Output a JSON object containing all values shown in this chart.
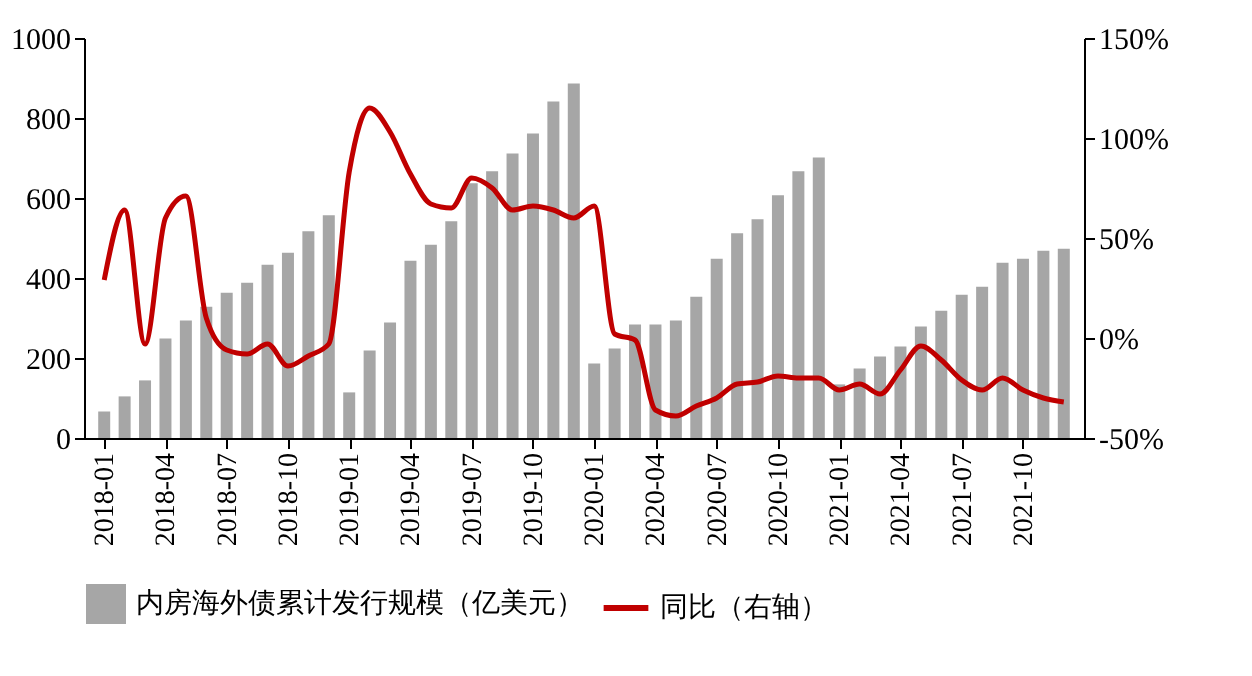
{
  "chart_data": {
    "type": "bar",
    "categories": [
      "2018-01",
      null,
      null,
      "2018-04",
      null,
      null,
      "2018-07",
      null,
      null,
      "2018-10",
      null,
      null,
      "2019-01",
      null,
      null,
      "2019-04",
      null,
      null,
      "2019-07",
      null,
      null,
      "2019-10",
      null,
      null,
      "2020-01",
      null,
      null,
      "2020-04",
      null,
      null,
      "2020-07",
      null,
      null,
      "2020-10",
      null,
      null,
      "2021-01",
      null,
      null,
      "2021-04",
      null,
      null,
      "2021-07",
      null,
      null,
      "2021-10",
      null,
      null
    ],
    "series": [
      {
        "name": "内房海外债累计发行规模（亿美元）",
        "color": "#a6a6a6",
        "values": [
          66,
          104,
          144,
          249,
          294,
          328,
          363,
          388,
          433,
          463,
          517,
          557,
          114,
          219,
          289,
          443,
          483,
          542,
          637,
          667,
          711,
          761,
          841,
          886,
          186,
          224,
          284,
          284,
          294,
          353,
          448,
          512,
          547,
          607,
          667,
          701,
          134,
          174,
          204,
          229,
          279,
          318,
          358,
          378,
          438,
          448,
          468,
          473
        ]
      },
      {
        "name": "同比（右轴）",
        "color": "#c00000",
        "type": "line",
        "axis": "y2",
        "values": [
          29,
          64,
          -3,
          60,
          71,
          10,
          -6,
          -8,
          -3,
          -14,
          -9,
          -3,
          83,
          115,
          103,
          82,
          67,
          65,
          80,
          75,
          64,
          66,
          64,
          60,
          66,
          2,
          -1,
          -36,
          -39,
          -34,
          -30,
          -23,
          -22,
          -19,
          -20,
          -20,
          -26,
          -23,
          -28,
          -16,
          -4,
          -11,
          -21,
          -26,
          -20,
          -26,
          -30,
          -32
        ]
      }
    ],
    "ylim": [
      0,
      1000
    ],
    "yticks": [
      0,
      200,
      400,
      600,
      800,
      1000
    ],
    "y2lim": [
      -50,
      150
    ],
    "y2ticks": [
      {
        "value": -50,
        "label": "-50%"
      },
      {
        "value": 0,
        "label": "0%"
      },
      {
        "value": 50,
        "label": "50%"
      },
      {
        "value": 100,
        "label": "100%"
      },
      {
        "value": 150,
        "label": "150%"
      }
    ],
    "grid": false,
    "legend": "bottom",
    "line_style": "solid",
    "marker": "none"
  }
}
